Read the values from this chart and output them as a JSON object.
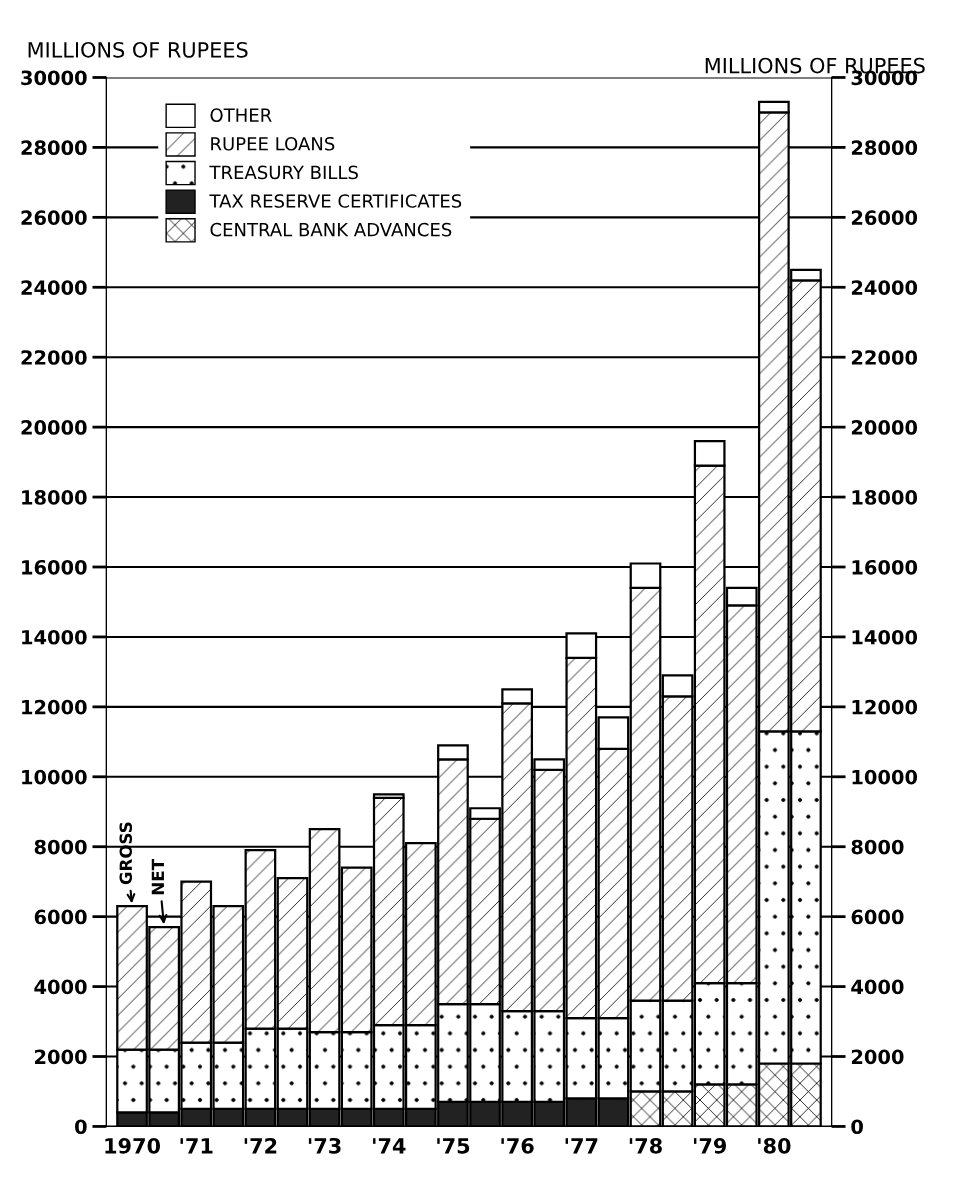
{
  "chart_data": {
    "type": "bar",
    "stacked": true,
    "ylabel": "MILLIONS OF RUPEES",
    "y2label": "MILLIONS OF RUPEES",
    "categories": [
      "1970",
      null,
      "'71",
      null,
      "'72",
      null,
      "'73",
      null,
      "'74",
      null,
      "'75",
      null,
      "'76",
      null,
      "'77",
      null,
      "'78",
      null,
      "'79",
      null,
      "'80",
      null
    ],
    "series": [
      {
        "name": "CENTRAL BANK ADVANCES",
        "color": "#000000",
        "values": [
          null,
          null,
          null,
          null,
          null,
          null,
          null,
          null,
          null,
          null,
          null,
          null,
          null,
          null,
          null,
          null,
          1000,
          1000,
          1200,
          1200,
          1800,
          1800
        ]
      },
      {
        "name": "TAX RESERVE CERTIFICATES",
        "color": "#222222",
        "values": [
          400,
          400,
          500,
          500,
          500,
          500,
          500,
          500,
          500,
          500,
          700,
          700,
          700,
          700,
          800,
          800,
          null,
          null,
          null,
          null,
          null,
          null
        ]
      },
      {
        "name": "TREASURY BILLS",
        "color": "#000000",
        "values": [
          1800,
          1800,
          1900,
          1900,
          2300,
          2300,
          2200,
          2200,
          2400,
          2400,
          2800,
          2800,
          2600,
          2600,
          2300,
          2300,
          2600,
          2600,
          2900,
          2900,
          9500,
          9500
        ]
      },
      {
        "name": "RUPEE LOANS",
        "color": "#000000",
        "values": [
          4100,
          3500,
          4600,
          3900,
          5100,
          4300,
          5800,
          4700,
          6500,
          5200,
          7000,
          5300,
          8800,
          6900,
          10300,
          7700,
          11800,
          8700,
          14800,
          10800,
          17700,
          12900
        ]
      },
      {
        "name": "OTHER",
        "color": "#ffffff",
        "values": [
          null,
          null,
          null,
          null,
          null,
          null,
          null,
          null,
          100,
          null,
          400,
          300,
          400,
          300,
          700,
          900,
          700,
          600,
          700,
          500,
          300,
          300
        ]
      }
    ],
    "ylim": [
      0,
      30000
    ],
    "yticks": [
      0,
      2000,
      4000,
      6000,
      8000,
      10000,
      12000,
      14000,
      16000,
      18000,
      20000,
      22000,
      24000,
      26000,
      28000,
      30000
    ],
    "y2lim": [
      0,
      30000
    ],
    "y2ticks": [
      0,
      2000,
      4000,
      6000,
      8000,
      10000,
      12000,
      14000,
      16000,
      18000,
      20000,
      22000,
      24000,
      26000,
      28000,
      30000
    ],
    "grid": "y",
    "legend": "top left",
    "annotations": [
      "GROSS",
      "NET"
    ]
  }
}
